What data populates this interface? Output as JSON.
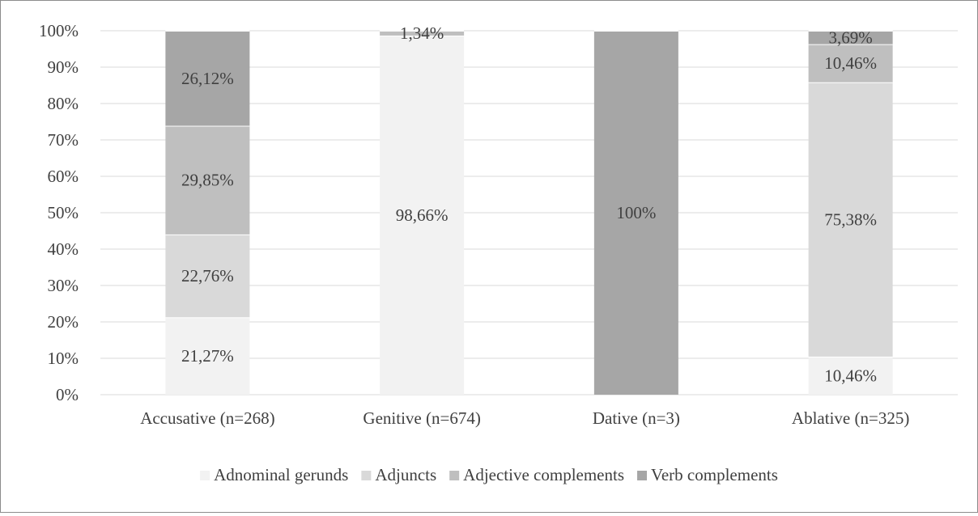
{
  "chart_data": {
    "type": "bar",
    "stacked": true,
    "percent_stacked": true,
    "categories": [
      "Accusative (n=268)",
      "Genitive (n=674)",
      "Dative (n=3)",
      "Ablative (n=325)"
    ],
    "series": [
      {
        "name": "Adnominal gerunds",
        "color": "#f2f2f2",
        "values": [
          21.27,
          98.66,
          0,
          10.46
        ],
        "labels": [
          "21,27%",
          "98,66%",
          "",
          "10,46%"
        ]
      },
      {
        "name": "Adjuncts",
        "color": "#d9d9d9",
        "values": [
          22.76,
          0,
          0,
          75.38
        ],
        "labels": [
          "22,76%",
          "",
          "",
          "75,38%"
        ]
      },
      {
        "name": "Adjective complements",
        "color": "#bfbfbf",
        "values": [
          29.85,
          1.34,
          0,
          10.46
        ],
        "labels": [
          "29,85%",
          "1,34%",
          "",
          "10,46%"
        ]
      },
      {
        "name": "Verb complements",
        "color": "#a6a6a6",
        "values": [
          26.12,
          0,
          100,
          3.69
        ],
        "labels": [
          "26,12%",
          "",
          "100%",
          "3,69%"
        ]
      }
    ],
    "yticks": [
      "0%",
      "10%",
      "20%",
      "30%",
      "40%",
      "50%",
      "60%",
      "70%",
      "80%",
      "90%",
      "100%"
    ],
    "ylim": [
      0,
      100
    ],
    "grid": true,
    "legend": "bottom",
    "gridline_color": "#d9d9d9",
    "text_color": "#404040"
  }
}
